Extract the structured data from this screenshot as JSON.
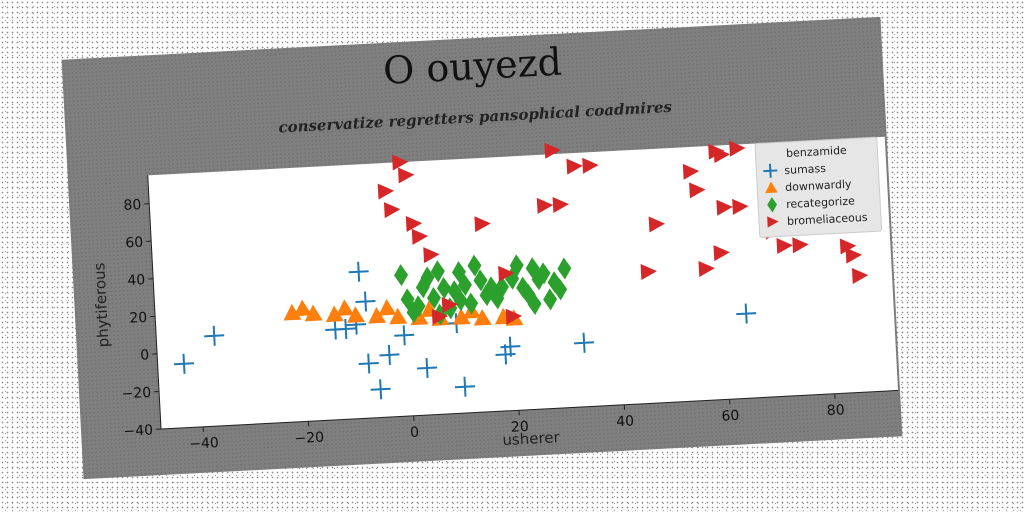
{
  "chart_data": {
    "type": "scatter",
    "title": "O ouyezd",
    "subtitle": "conservatize regretters pansophical coadmires",
    "xlabel": "usherer",
    "ylabel": "phytiferous",
    "xlim": [
      -48,
      92
    ],
    "ylim": [
      -40,
      95
    ],
    "x_ticks": [
      -40,
      -20,
      0,
      20,
      40,
      60,
      80
    ],
    "y_ticks": [
      -40,
      -20,
      0,
      20,
      40,
      60,
      80
    ],
    "grid": false,
    "legend": {
      "title": "benzamide",
      "position": "top-right"
    },
    "colors": {
      "sumass": "#1f77b4",
      "downwardly": "#ff7f0e",
      "recategorize": "#2ca02c",
      "bromeliaceous": "#d62728"
    },
    "series": [
      {
        "name": "sumass",
        "marker": "plus",
        "x": [
          -43,
          -37,
          -14,
          -12,
          -9,
          -8,
          -8,
          -6,
          -4,
          -1,
          3,
          10,
          18,
          19,
          33,
          64,
          9,
          -10
        ],
        "y": [
          -6,
          8,
          8,
          8,
          38,
          22,
          -11,
          -25,
          -7,
          3,
          -15,
          -26,
          -10,
          -6,
          -6,
          5,
          8,
          10
        ]
      },
      {
        "name": "downwardly",
        "marker": "triangle-up",
        "x": [
          -22,
          -18,
          -14,
          -10,
          -6,
          -2,
          2,
          6,
          10,
          14,
          18,
          20,
          -20,
          -12,
          -4,
          4,
          12
        ],
        "y": [
          18,
          17,
          16,
          15,
          14,
          13,
          12,
          11,
          11,
          10,
          10,
          9,
          20,
          19,
          18,
          16,
          14
        ]
      },
      {
        "name": "recategorize",
        "marker": "diamond",
        "x": [
          -1,
          0,
          1,
          3,
          4,
          5,
          6,
          7,
          8,
          9,
          10,
          11,
          12,
          13,
          14,
          15,
          17,
          18,
          20,
          21,
          22,
          23,
          24,
          25,
          26,
          27,
          28,
          29,
          30,
          2,
          6,
          10,
          16,
          24
        ],
        "y": [
          35,
          22,
          15,
          28,
          33,
          22,
          36,
          27,
          16,
          25,
          35,
          28,
          18,
          38,
          30,
          22,
          20,
          26,
          30,
          37,
          25,
          21,
          35,
          29,
          32,
          18,
          27,
          23,
          34,
          18,
          13,
          20,
          26,
          16
        ],
        "markers_note": "cluster of green diamonds"
      },
      {
        "name": "bromeliaceous",
        "marker": "triangle-right",
        "x": [
          -3,
          -2,
          0,
          1,
          2,
          3,
          5,
          6,
          8,
          15,
          19,
          20,
          27,
          29,
          30,
          33,
          36,
          46,
          48,
          55,
          56,
          57,
          60,
          60,
          61,
          61,
          64,
          64,
          70,
          72,
          75,
          78,
          83,
          84,
          85,
          86
        ],
        "y": [
          80,
          70,
          95,
          88,
          62,
          55,
          45,
          12,
          18,
          60,
          33,
          10,
          68,
          97,
          68,
          88,
          88,
          30,
          55,
          82,
          72,
          30,
          92,
          38,
          62,
          90,
          93,
          62,
          48,
          40,
          40,
          88,
          52,
          38,
          33,
          22
        ]
      }
    ]
  }
}
